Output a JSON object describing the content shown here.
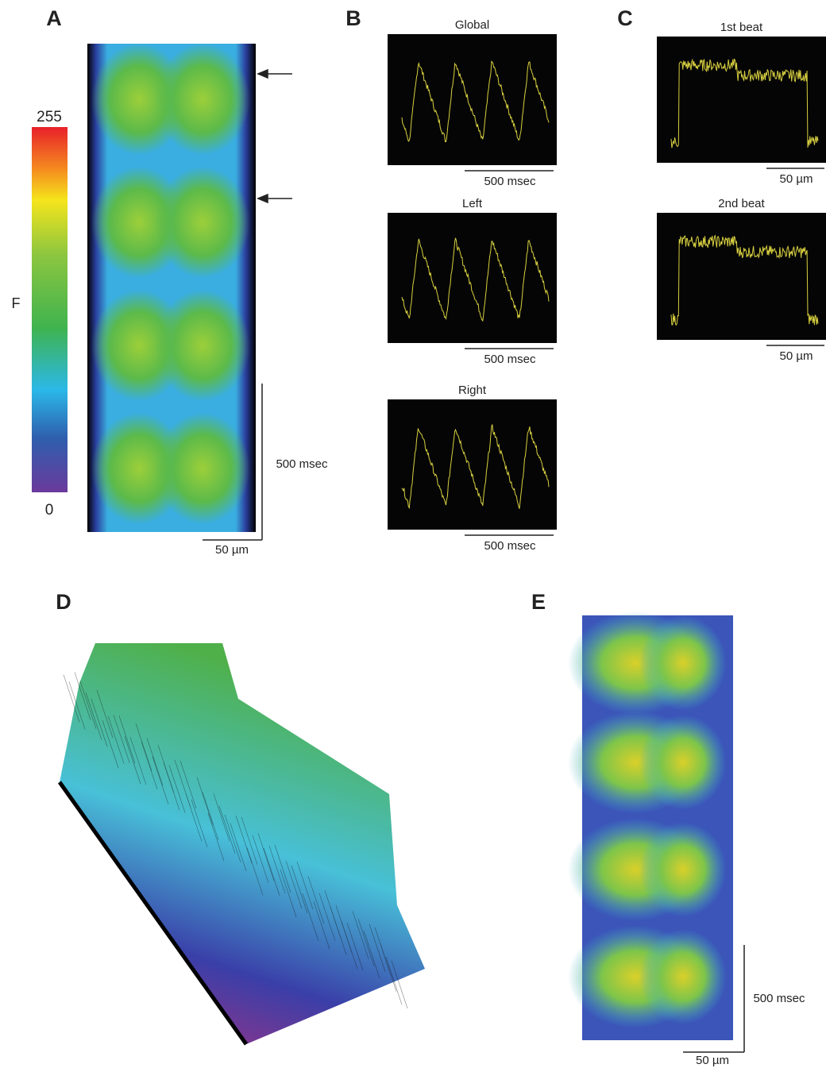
{
  "panels": {
    "A": {
      "label": "A",
      "colorbar": {
        "max": 255,
        "min": 0,
        "axis_label": "F"
      },
      "scale_time": "500 msec",
      "scale_space": "50 µm"
    },
    "B": {
      "label": "B",
      "traces": [
        {
          "title": "Global",
          "scale": "500 msec"
        },
        {
          "title": "Left",
          "scale": "500 msec"
        },
        {
          "title": "Right",
          "scale": "500 msec"
        }
      ]
    },
    "C": {
      "label": "C",
      "traces": [
        {
          "title": "1st beat",
          "scale": "50 µm"
        },
        {
          "title": "2nd beat",
          "scale": "50 µm"
        }
      ]
    },
    "D": {
      "label": "D"
    },
    "E": {
      "label": "E",
      "scale_time": "500 msec",
      "scale_space": "50 µm"
    }
  }
}
